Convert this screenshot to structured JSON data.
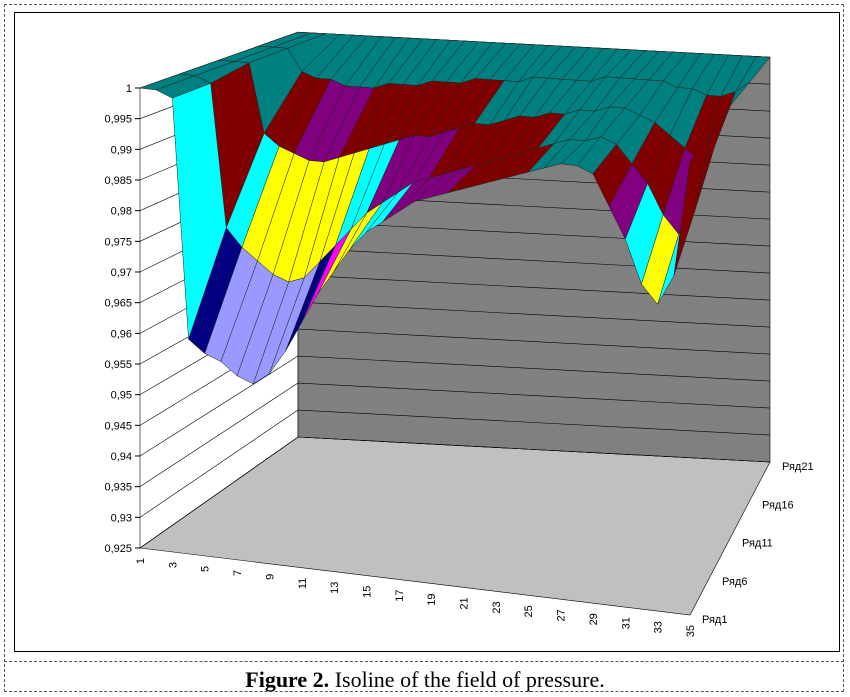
{
  "chart_data": {
    "type": "surface3d",
    "categories": [
      "1",
      null,
      "3",
      null,
      "5",
      null,
      "7",
      null,
      "9",
      null,
      "11",
      null,
      "13",
      null,
      "15",
      null,
      "17",
      null,
      "19",
      null,
      "21",
      null,
      "23",
      null,
      "25",
      null,
      "27",
      null,
      "29",
      null,
      "31",
      null,
      "33",
      null,
      "35"
    ],
    "series": [
      {
        "name": "Ряд1",
        "values": [
          1,
          1,
          0.999,
          0.96,
          0.958,
          0.957,
          0.955,
          0.954,
          0.956,
          0.96,
          0.965,
          0.97,
          0.974,
          0.978,
          0.981,
          0.983,
          0.985,
          0.987,
          0.988,
          0.989,
          0.99,
          0.991,
          0.992,
          0.993,
          0.994,
          0.995,
          0.996,
          0.996,
          0.995,
          0.99,
          0.985,
          0.978,
          0.975,
          0.98,
          0.999
        ]
      },
      {
        "name": "Ряд6",
        "values": [
          1,
          1,
          0.999,
          0.975,
          0.972,
          0.97,
          0.968,
          0.967,
          0.968,
          0.971,
          0.974,
          0.977,
          0.98,
          0.982,
          0.984,
          0.986,
          0.987,
          0.988,
          0.989,
          0.99,
          0.991,
          0.992,
          0.993,
          0.994,
          0.995,
          0.996,
          0.996,
          0.997,
          0.996,
          0.993,
          0.99,
          0.985,
          0.982,
          0.986,
          0.999
        ]
      },
      {
        "name": "Ряд11",
        "values": [
          1,
          1,
          1,
          0.988,
          0.986,
          0.985,
          0.984,
          0.984,
          0.985,
          0.986,
          0.987,
          0.988,
          0.989,
          0.99,
          0.99,
          0.991,
          0.992,
          0.993,
          0.993,
          0.994,
          0.995,
          0.995,
          0.996,
          0.996,
          0.997,
          0.997,
          0.998,
          0.998,
          0.997,
          0.996,
          0.994,
          0.992,
          0.99,
          0.993,
          1
        ]
      },
      {
        "name": "Ряд16",
        "values": [
          1,
          1,
          1,
          0.996,
          0.995,
          0.995,
          0.994,
          0.994,
          0.994,
          0.995,
          0.995,
          0.995,
          0.996,
          0.996,
          0.996,
          0.997,
          0.997,
          0.997,
          0.997,
          0.998,
          0.998,
          0.998,
          0.998,
          0.998,
          0.999,
          0.999,
          0.999,
          0.999,
          0.999,
          0.998,
          0.998,
          0.997,
          0.997,
          0.998,
          1
        ]
      },
      {
        "name": "Ряд21",
        "values": [
          1,
          1,
          1,
          1,
          1,
          1,
          1,
          1,
          1,
          1,
          1,
          1,
          1,
          1,
          1,
          1,
          1,
          1,
          1,
          1,
          1,
          1,
          1,
          1,
          1,
          1,
          1,
          1,
          1,
          1,
          1,
          1,
          1,
          1,
          1
        ]
      }
    ],
    "ylim": [
      0.925,
      1
    ],
    "yticks": [
      {
        "value": 0.925,
        "label": "0,925"
      },
      {
        "value": 0.93,
        "label": "0,93"
      },
      {
        "value": 0.935,
        "label": "0,935"
      },
      {
        "value": 0.94,
        "label": "0,94"
      },
      {
        "value": 0.945,
        "label": "0,945"
      },
      {
        "value": 0.95,
        "label": "0,95"
      },
      {
        "value": 0.955,
        "label": "0,955"
      },
      {
        "value": 0.96,
        "label": "0,96"
      },
      {
        "value": 0.965,
        "label": "0,965"
      },
      {
        "value": 0.97,
        "label": "0,97"
      },
      {
        "value": 0.975,
        "label": "0,975"
      },
      {
        "value": 0.98,
        "label": "0,98"
      },
      {
        "value": 0.985,
        "label": "0,985"
      },
      {
        "value": 0.99,
        "label": "0,99"
      },
      {
        "value": 0.995,
        "label": "0,995"
      },
      1
    ],
    "band_colors": [
      "#008080",
      "#800000",
      "#800080",
      "#00ffff",
      "#ffff00",
      "#ff00ff",
      "#000080",
      "#9999ff",
      "#0066cc",
      "#ff8080"
    ],
    "grid": true
  },
  "caption": {
    "label": "Figure 2.",
    "text": "Isoline of the field of pressure."
  }
}
